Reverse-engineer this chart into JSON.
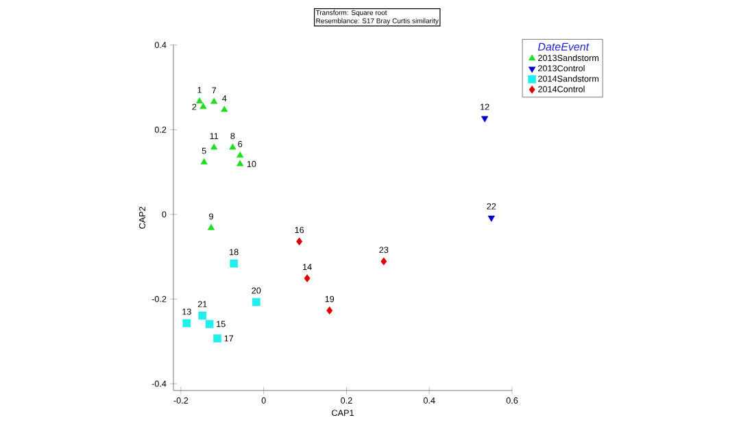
{
  "chart_data": {
    "type": "scatter",
    "xlabel": "CAP1",
    "ylabel": "CAP2",
    "legend_title": "DateEvent",
    "legend": "top right",
    "grid": false,
    "xlim": [
      -0.218,
      0.6
    ],
    "ylim": [
      -0.416,
      0.4
    ],
    "xticks": [
      -0.2,
      0,
      0.2,
      0.4,
      0.6
    ],
    "yticks": [
      -0.4,
      -0.2,
      0,
      0.2,
      0.4
    ],
    "series": [
      {
        "name": "2013Sandstorm",
        "color": "#22dd22",
        "marker": "triangle",
        "x": [
          -0.155,
          -0.146,
          -0.12,
          -0.095,
          -0.12,
          -0.144,
          -0.075,
          -0.057,
          -0.057,
          -0.127
        ],
        "values": [
          0.267,
          0.254,
          0.266,
          0.247,
          0.158,
          0.123,
          0.158,
          0.139,
          0.119,
          -0.032
        ]
      },
      {
        "name": "2013Control",
        "color": "#0000cc",
        "marker": "triangle-down",
        "x": [
          0.534,
          0.55
        ],
        "values": [
          0.227,
          -0.008
        ]
      },
      {
        "name": "2014Sandstorm",
        "color": "#22eeee",
        "marker": "square",
        "x": [
          -0.072,
          -0.018,
          -0.148,
          -0.186,
          -0.131,
          -0.112
        ],
        "values": [
          -0.116,
          -0.207,
          -0.239,
          -0.257,
          -0.259,
          -0.293
        ]
      },
      {
        "name": "2014Control",
        "color": "#dd0000",
        "marker": "diamond",
        "x": [
          0.086,
          0.29,
          0.105,
          0.159
        ],
        "values": [
          -0.064,
          -0.111,
          -0.151,
          -0.227
        ]
      }
    ],
    "annotations": [
      "Transform: Square root",
      "Resemblance: S17 Bray Curtis similarity",
      {
        "text": "1",
        "x": -0.155,
        "y": 0.267
      },
      {
        "text": "2",
        "x": -0.146,
        "y": 0.254
      },
      {
        "text": "7",
        "x": -0.12,
        "y": 0.266
      },
      {
        "text": "4",
        "x": -0.095,
        "y": 0.247
      },
      {
        "text": "11",
        "x": -0.12,
        "y": 0.158
      },
      {
        "text": "5",
        "x": -0.144,
        "y": 0.123
      },
      {
        "text": "8",
        "x": -0.075,
        "y": 0.158
      },
      {
        "text": "6",
        "x": -0.057,
        "y": 0.139
      },
      {
        "text": "10",
        "x": -0.057,
        "y": 0.119
      },
      {
        "text": "9",
        "x": -0.127,
        "y": -0.032
      },
      {
        "text": "12",
        "x": 0.534,
        "y": 0.227
      },
      {
        "text": "22",
        "x": 0.55,
        "y": -0.008
      },
      {
        "text": "18",
        "x": -0.072,
        "y": -0.116
      },
      {
        "text": "20",
        "x": -0.018,
        "y": -0.207
      },
      {
        "text": "21",
        "x": -0.148,
        "y": -0.239
      },
      {
        "text": "13",
        "x": -0.186,
        "y": -0.257
      },
      {
        "text": "15",
        "x": -0.131,
        "y": -0.259
      },
      {
        "text": "17",
        "x": -0.112,
        "y": -0.293
      },
      {
        "text": "16",
        "x": 0.086,
        "y": -0.064
      },
      {
        "text": "23",
        "x": 0.29,
        "y": -0.111
      },
      {
        "text": "14",
        "x": 0.105,
        "y": -0.151
      },
      {
        "text": "19",
        "x": 0.159,
        "y": -0.227
      }
    ]
  }
}
